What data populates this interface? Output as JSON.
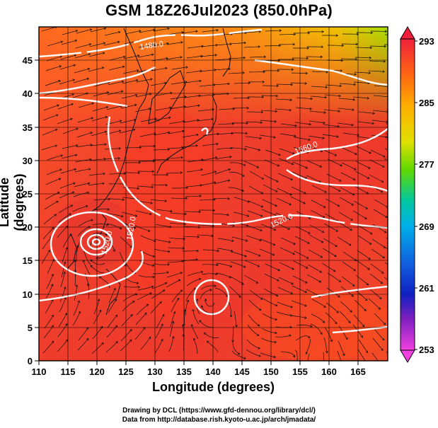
{
  "title": "GSM 18Z26Jul2023 (850.0hPa)",
  "axes": {
    "xlabel": "Longitude (degrees)",
    "ylabel": "Latitude  (degrees)",
    "xticks": [
      "110",
      "115",
      "120",
      "125",
      "130",
      "135",
      "140",
      "145",
      "150",
      "155",
      "160",
      "165"
    ],
    "yticks": [
      "0",
      "5",
      "10",
      "15",
      "20",
      "25",
      "30",
      "35",
      "40",
      "45"
    ]
  },
  "colorbar": {
    "labels": [
      "293",
      "285",
      "277",
      "269",
      "261",
      "253"
    ],
    "colors": [
      "#f0203c",
      "#ff8c00",
      "#8ce000",
      "#00c0e0",
      "#1030d0",
      "#e040e0"
    ]
  },
  "contours": {
    "labels": [
      "1480.0",
      "1560.0",
      "1520.0",
      "1520.0",
      "1520.0"
    ]
  },
  "credits": {
    "line1": "Drawing by DCL (https://www.gfd-dennou.org/library/dcl/)",
    "line2": "Data from http://database.rish.kyoto-u.ac.jp/arch/jmadata/"
  }
}
